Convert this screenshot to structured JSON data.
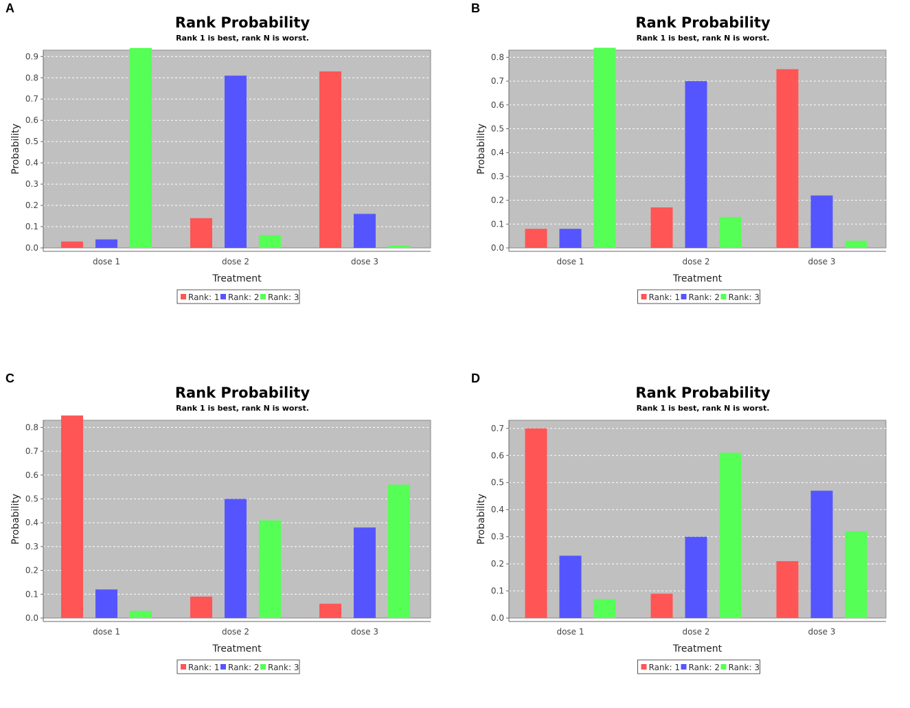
{
  "colors": {
    "Rank: 1": "#ff5555",
    "Rank: 2": "#5555ff",
    "Rank: 3": "#55ff55",
    "plot_bg": "#c0c0c0"
  },
  "chart_data": [
    {
      "panel": "A",
      "type": "bar",
      "title": "Rank Probability",
      "subtitle": "Rank 1 is best, rank N is worst.",
      "xlabel": "Treatment",
      "ylabel": "Probability",
      "categories": [
        "dose 1",
        "dose 2",
        "dose 3"
      ],
      "ylim": [
        0,
        0.9
      ],
      "yticks": [
        "0.0",
        "0.1",
        "0.2",
        "0.3",
        "0.4",
        "0.5",
        "0.6",
        "0.7",
        "0.8",
        "0.9"
      ],
      "series": [
        {
          "name": "Rank: 1",
          "values": [
            0.03,
            0.14,
            0.83
          ]
        },
        {
          "name": "Rank: 2",
          "values": [
            0.04,
            0.81,
            0.16
          ]
        },
        {
          "name": "Rank: 3",
          "values": [
            0.94,
            0.06,
            0.01
          ]
        }
      ]
    },
    {
      "panel": "B",
      "type": "bar",
      "title": "Rank Probability",
      "subtitle": "Rank 1 is best, rank N is worst.",
      "xlabel": "Treatment",
      "ylabel": "Probability",
      "categories": [
        "dose 1",
        "dose 2",
        "dose 3"
      ],
      "ylim": [
        0,
        0.8
      ],
      "yticks": [
        "0.0",
        "0.1",
        "0.2",
        "0.3",
        "0.4",
        "0.5",
        "0.6",
        "0.7",
        "0.8"
      ],
      "series": [
        {
          "name": "Rank: 1",
          "values": [
            0.08,
            0.17,
            0.75
          ]
        },
        {
          "name": "Rank: 2",
          "values": [
            0.08,
            0.7,
            0.22
          ]
        },
        {
          "name": "Rank: 3",
          "values": [
            0.84,
            0.13,
            0.03
          ]
        }
      ]
    },
    {
      "panel": "C",
      "type": "bar",
      "title": "Rank Probability",
      "subtitle": "Rank 1 is best, rank N is worst.",
      "xlabel": "Treatment",
      "ylabel": "Probability",
      "categories": [
        "dose 1",
        "dose 2",
        "dose 3"
      ],
      "ylim": [
        0,
        0.8
      ],
      "yticks": [
        "0.0",
        "0.1",
        "0.2",
        "0.3",
        "0.4",
        "0.5",
        "0.6",
        "0.7",
        "0.8"
      ],
      "series": [
        {
          "name": "Rank: 1",
          "values": [
            0.85,
            0.09,
            0.06
          ]
        },
        {
          "name": "Rank: 2",
          "values": [
            0.12,
            0.5,
            0.38
          ]
        },
        {
          "name": "Rank: 3",
          "values": [
            0.03,
            0.41,
            0.56
          ]
        }
      ]
    },
    {
      "panel": "D",
      "type": "bar",
      "title": "Rank Probability",
      "subtitle": "Rank 1 is best, rank N is worst.",
      "xlabel": "Treatment",
      "ylabel": "Probability",
      "categories": [
        "dose 1",
        "dose 2",
        "dose 3"
      ],
      "ylim": [
        0,
        0.7
      ],
      "yticks": [
        "0.0",
        "0.1",
        "0.2",
        "0.3",
        "0.4",
        "0.5",
        "0.6",
        "0.7"
      ],
      "series": [
        {
          "name": "Rank: 1",
          "values": [
            0.7,
            0.09,
            0.21
          ]
        },
        {
          "name": "Rank: 2",
          "values": [
            0.23,
            0.3,
            0.47
          ]
        },
        {
          "name": "Rank: 3",
          "values": [
            0.07,
            0.61,
            0.32
          ]
        }
      ]
    }
  ]
}
